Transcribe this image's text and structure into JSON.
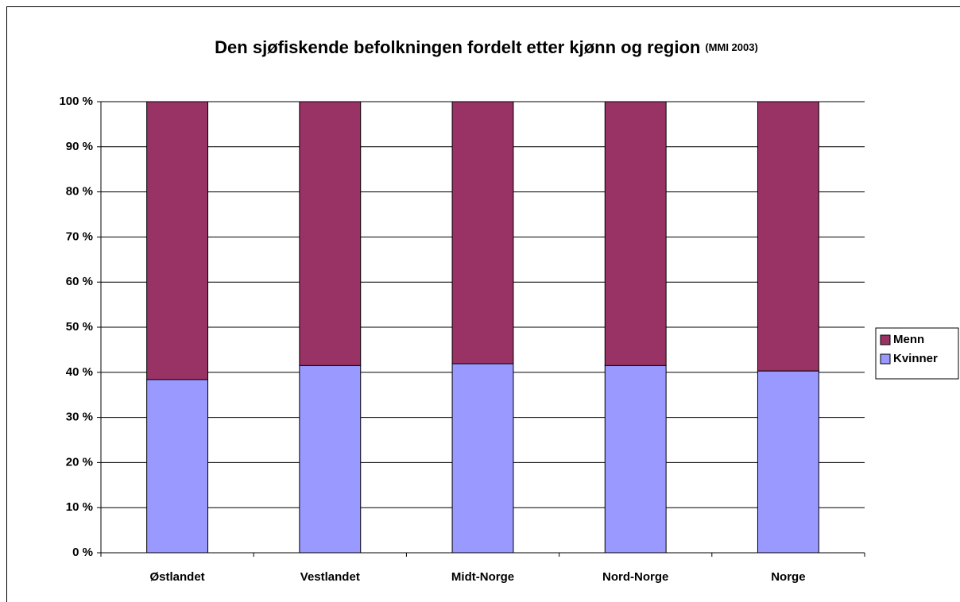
{
  "chart_data": {
    "type": "stacked_bar",
    "title": "Den sjøfiskende befolkningen fordelt etter kjønn og region",
    "subtitle": "(MMI 2003)",
    "categories": [
      "Østlandet",
      "Vestlandet",
      "Midt-Norge",
      "Nord-Norge",
      "Norge"
    ],
    "series": [
      {
        "name": "Kvinner",
        "color": "#9999ff",
        "values": [
          38.4,
          41.5,
          41.9,
          41.5,
          40.3
        ]
      },
      {
        "name": "Menn",
        "color": "#993366",
        "values": [
          61.6,
          58.5,
          58.1,
          58.5,
          59.7
        ]
      }
    ],
    "ylim": [
      0,
      100
    ],
    "yticks": [
      {
        "value": 0,
        "label": "0 %"
      },
      {
        "value": 10,
        "label": "10 %"
      },
      {
        "value": 20,
        "label": "20 %"
      },
      {
        "value": 30,
        "label": "30 %"
      },
      {
        "value": 40,
        "label": "40 %"
      },
      {
        "value": 50,
        "label": "50 %"
      },
      {
        "value": 60,
        "label": "60 %"
      },
      {
        "value": 70,
        "label": "70 %"
      },
      {
        "value": 80,
        "label": "80 %"
      },
      {
        "value": 90,
        "label": "90 %"
      },
      {
        "value": 100,
        "label": "100 %"
      }
    ],
    "grid": true,
    "legend": "right"
  }
}
